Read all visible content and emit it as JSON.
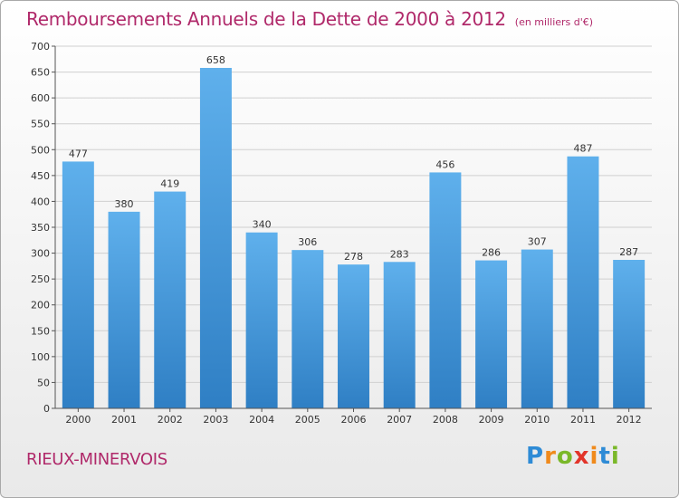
{
  "title": "Remboursements Annuels de la Dette de 2000 à 2012",
  "unit": "(en milliers d'€)",
  "location": "RIEUX-MINERVOIS",
  "logo_text": "Proxiti",
  "chart_data": {
    "type": "bar",
    "title": "Remboursements Annuels de la Dette de 2000 à 2012",
    "xlabel": "",
    "ylabel": "",
    "categories": [
      "2000",
      "2001",
      "2002",
      "2003",
      "2004",
      "2005",
      "2006",
      "2007",
      "2008",
      "2009",
      "2010",
      "2011",
      "2012"
    ],
    "values": [
      477,
      380,
      419,
      658,
      340,
      306,
      278,
      283,
      456,
      286,
      307,
      487,
      287
    ],
    "ylim": [
      0,
      700
    ],
    "yticks": [
      0,
      50,
      100,
      150,
      200,
      250,
      300,
      350,
      400,
      450,
      500,
      550,
      600,
      650,
      700
    ],
    "grid": true,
    "bar_color": "#4a9ee0",
    "text_color": "#b0296a"
  }
}
